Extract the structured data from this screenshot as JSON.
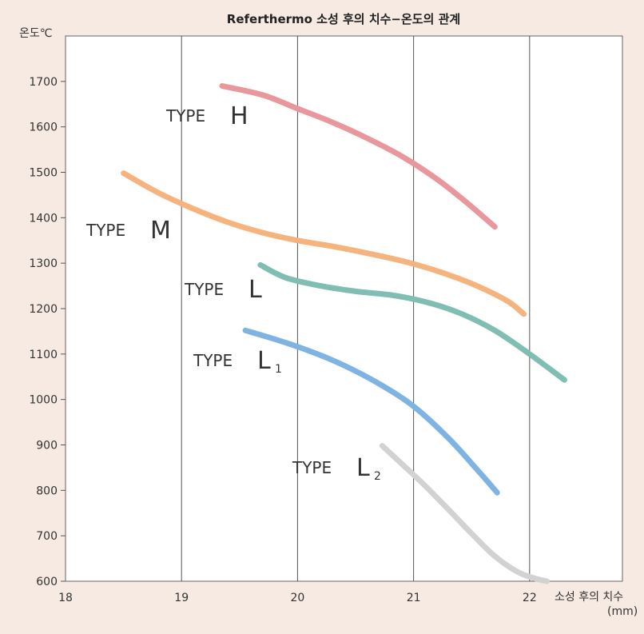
{
  "chart_data": {
    "type": "line",
    "title": "Referthermo 소성 후의 치수−온도의 관계",
    "ylabel": "온도℃",
    "xlabel": "소성 후의 치수",
    "xunit": "(mm)",
    "xlim": [
      18,
      22.8
    ],
    "ylim": [
      600,
      1800
    ],
    "xticks": [
      18,
      19,
      20,
      21,
      22
    ],
    "yticks": [
      600,
      700,
      800,
      900,
      1000,
      1100,
      1200,
      1300,
      1400,
      1500,
      1600,
      1700
    ],
    "grid": {
      "vertical": true,
      "horizontal": false
    },
    "series": [
      {
        "name": "TYPE H",
        "prefix": "TYPE",
        "letter": "H",
        "sub": "",
        "color": "#e8979c",
        "x": [
          19.35,
          19.7,
          20.0,
          20.3,
          20.6,
          20.9,
          21.2,
          21.45,
          21.7
        ],
        "y": [
          1690,
          1670,
          1640,
          1610,
          1575,
          1535,
          1485,
          1435,
          1380
        ]
      },
      {
        "name": "TYPE M",
        "prefix": "TYPE",
        "letter": "M",
        "sub": "",
        "color": "#f5b47e",
        "x": [
          18.5,
          18.8,
          19.1,
          19.4,
          19.7,
          20.0,
          20.3,
          20.6,
          20.9,
          21.2,
          21.5,
          21.8,
          21.95
        ],
        "y": [
          1498,
          1455,
          1420,
          1390,
          1367,
          1350,
          1337,
          1322,
          1305,
          1283,
          1255,
          1218,
          1188
        ]
      },
      {
        "name": "TYPE L",
        "prefix": "TYPE",
        "letter": "L",
        "sub": "",
        "color": "#80bdb2",
        "x": [
          19.68,
          19.9,
          20.2,
          20.5,
          20.8,
          21.1,
          21.4,
          21.7,
          22.0,
          22.3
        ],
        "y": [
          1296,
          1268,
          1250,
          1238,
          1230,
          1215,
          1190,
          1152,
          1100,
          1043
        ]
      },
      {
        "name": "TYPE L1",
        "prefix": "TYPE",
        "letter": "L",
        "sub": "1",
        "color": "#7fb4e2",
        "x": [
          19.55,
          19.8,
          20.1,
          20.4,
          20.7,
          21.0,
          21.3,
          21.55,
          21.72
        ],
        "y": [
          1152,
          1133,
          1107,
          1075,
          1035,
          985,
          915,
          845,
          795
        ]
      },
      {
        "name": "TYPE L2",
        "prefix": "TYPE",
        "letter": "L",
        "sub": "2",
        "color": "#d2d2d2",
        "x": [
          20.73,
          20.9,
          21.1,
          21.3,
          21.5,
          21.7,
          21.9,
          22.05,
          22.15
        ],
        "y": [
          898,
          858,
          810,
          758,
          705,
          655,
          620,
          606,
          600
        ]
      }
    ]
  }
}
